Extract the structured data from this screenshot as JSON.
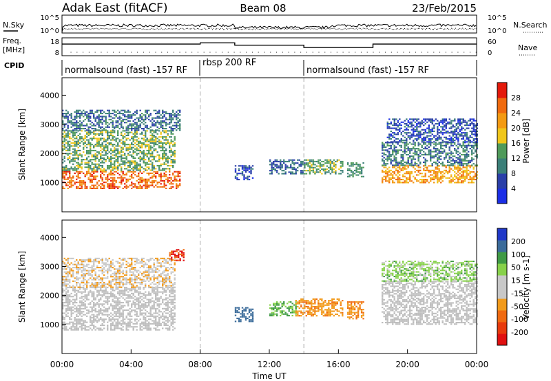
{
  "header": {
    "station": "Adak East (fitACF)",
    "beam": "Beam 08",
    "date": "23/Feb/2015"
  },
  "top_panels": {
    "nsky_label": "N.Sky",
    "nsky_ticks": [
      "10^5",
      "10^0"
    ],
    "nsearch_label": "N.Search",
    "nsearch_ticks": [
      "10^5",
      "10^0"
    ],
    "freq_label": "Freq.",
    "freq_unit": "[MHz]",
    "freq_ticks": [
      "18",
      "8"
    ],
    "nave_label": "Nave",
    "nave_ticks": [
      "60",
      "0"
    ],
    "cpid_label": "CPID",
    "cpid_segments": [
      {
        "label": "normalsound (fast) -157 RF",
        "start_hr": 0,
        "end_hr": 8
      },
      {
        "label": "rbsp 200 RF",
        "start_hr": 8,
        "end_hr": 14
      },
      {
        "label": "normalsound (fast) -157 RF",
        "start_hr": 14,
        "end_hr": 24
      }
    ]
  },
  "colors": {
    "power_scale": [
      "#1b2ee6",
      "#2a3fa8",
      "#3b7f78",
      "#4f9a5a",
      "#f0c61a",
      "#f39a12",
      "#f06a0e",
      "#e4190b"
    ],
    "velocity_scale": [
      "#2038c8",
      "#3b6b9a",
      "#3f9a45",
      "#87d14a",
      "#c8c8c8",
      "#c8c8c8",
      "#f29a1a",
      "#f06a10",
      "#e83a0c",
      "#e01010"
    ],
    "ground_scatter": "#bdbdbd"
  },
  "power_panel": {
    "ylabel": "Slant Range [km]",
    "yticks": [
      "4000",
      "3000",
      "2000",
      "1000"
    ],
    "colorbar_label": "Power [dB]",
    "colorbar_ticks": [
      "28",
      "24",
      "20",
      "16",
      "12",
      "8",
      "4"
    ]
  },
  "velocity_panel": {
    "ylabel": "Slant Range [km]",
    "yticks": [
      "4000",
      "3000",
      "2000",
      "1000"
    ],
    "colorbar_label": "Velocity [m s-1]",
    "colorbar_ticks": [
      "200",
      "100",
      "50",
      "15",
      "-15",
      "-50",
      "-100",
      "-200"
    ]
  },
  "xaxis": {
    "label": "Time UT",
    "ticks": [
      "00:00",
      "04:00",
      "08:00",
      "12:00",
      "16:00",
      "20:00",
      "00:00"
    ]
  },
  "chart_data": {
    "type": "heatmap",
    "title": "Adak East (fitACF) Beam 08 23/Feb/2015",
    "xlabel": "Time UT",
    "ylabel": "Slant Range [km]",
    "xlim": [
      0,
      24
    ],
    "ylim": [
      0,
      4600
    ],
    "frequency_mhz": [
      {
        "start_hr": 0,
        "end_hr": 8,
        "value": 14.5
      },
      {
        "start_hr": 8,
        "end_hr": 10,
        "value": 15.2
      },
      {
        "start_hr": 10,
        "end_hr": 14,
        "value": 13.9
      },
      {
        "start_hr": 14,
        "end_hr": 18,
        "value": 12.6
      },
      {
        "start_hr": 18,
        "end_hr": 24,
        "value": 14.5
      }
    ],
    "power_regions": [
      {
        "t0": 0,
        "t1": 6.8,
        "r0": 800,
        "r1": 1400,
        "db": 26
      },
      {
        "t0": 0,
        "t1": 6.5,
        "r0": 1400,
        "r1": 2800,
        "db": 14
      },
      {
        "t0": 0,
        "t1": 6.8,
        "r0": 2800,
        "r1": 3500,
        "db": 9
      },
      {
        "t0": 10.0,
        "t1": 11.0,
        "r0": 1100,
        "r1": 1600,
        "db": 6
      },
      {
        "t0": 12.0,
        "t1": 14.0,
        "r0": 1300,
        "r1": 1800,
        "db": 8
      },
      {
        "t0": 14.0,
        "t1": 16.2,
        "r0": 1300,
        "r1": 1800,
        "db": 14
      },
      {
        "t0": 16.5,
        "t1": 17.4,
        "r0": 1200,
        "r1": 1700,
        "db": 12
      },
      {
        "t0": 18.5,
        "t1": 24,
        "r0": 1000,
        "r1": 1600,
        "db": 22
      },
      {
        "t0": 18.5,
        "t1": 24,
        "r0": 1600,
        "r1": 2400,
        "db": 10
      },
      {
        "t0": 18.8,
        "t1": 24,
        "r0": 2400,
        "r1": 3200,
        "db": 6
      }
    ],
    "velocity_regions": [
      {
        "t0": 0,
        "t1": 6.5,
        "r0": 800,
        "r1": 2300,
        "v": 0,
        "ground_scatter": true
      },
      {
        "t0": 0,
        "t1": 6.5,
        "r0": 2300,
        "r1": 3300,
        "v": -40
      },
      {
        "t0": 6.2,
        "t1": 7.0,
        "r0": 3200,
        "r1": 3600,
        "v": -200
      },
      {
        "t0": 10.0,
        "t1": 11.0,
        "r0": 1100,
        "r1": 1600,
        "v": 150
      },
      {
        "t0": 12.0,
        "t1": 13.5,
        "r0": 1300,
        "r1": 1800,
        "v": 50
      },
      {
        "t0": 13.5,
        "t1": 16.2,
        "r0": 1300,
        "r1": 1900,
        "v": -80
      },
      {
        "t0": 16.5,
        "t1": 17.4,
        "r0": 1200,
        "r1": 1800,
        "v": -100
      },
      {
        "t0": 18.5,
        "t1": 24,
        "r0": 1000,
        "r1": 2500,
        "v": 0,
        "ground_scatter": true
      },
      {
        "t0": 18.5,
        "t1": 24,
        "r0": 2500,
        "r1": 3200,
        "v": 30
      }
    ]
  }
}
